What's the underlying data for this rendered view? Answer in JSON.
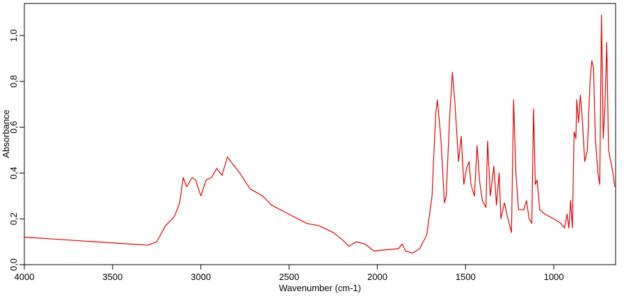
{
  "chart_data": {
    "type": "line",
    "xlabel": "Wavenumber (cm-1)",
    "ylabel": "Absorbance",
    "color": "#e00000",
    "xlim": [
      4000,
      650
    ],
    "ylim": [
      0,
      1.14
    ],
    "xticks": [
      4000,
      3500,
      3000,
      2500,
      2000,
      1500,
      1000
    ],
    "yticks": [
      {
        "value": 0,
        "label": "0,0"
      },
      {
        "value": 0.2,
        "label": "0,2"
      },
      {
        "value": 0.4,
        "label": "0,4"
      },
      {
        "value": 0.6,
        "label": "0,6"
      },
      {
        "value": 0.8,
        "label": "0,8"
      },
      {
        "value": 1.0,
        "label": "1,0"
      }
    ],
    "x": [
      4000,
      3800,
      3600,
      3400,
      3300,
      3250,
      3200,
      3150,
      3120,
      3100,
      3080,
      3050,
      3030,
      3000,
      2970,
      2940,
      2910,
      2880,
      2850,
      2820,
      2780,
      2720,
      2650,
      2600,
      2500,
      2400,
      2330,
      2250,
      2200,
      2160,
      2120,
      2070,
      2020,
      1950,
      1880,
      1860,
      1840,
      1800,
      1760,
      1720,
      1690,
      1670,
      1660,
      1640,
      1620,
      1610,
      1590,
      1575,
      1560,
      1540,
      1525,
      1510,
      1495,
      1480,
      1470,
      1450,
      1435,
      1420,
      1405,
      1385,
      1375,
      1360,
      1340,
      1325,
      1310,
      1300,
      1280,
      1260,
      1240,
      1228,
      1215,
      1200,
      1170,
      1155,
      1140,
      1125,
      1115,
      1105,
      1095,
      1080,
      1050,
      1000,
      960,
      940,
      925,
      915,
      905,
      895,
      885,
      875,
      870,
      860,
      850,
      840,
      825,
      810,
      795,
      785,
      775,
      765,
      750,
      740,
      730,
      720,
      710,
      700,
      690,
      680,
      665,
      655
    ],
    "values": [
      0.12,
      0.11,
      0.1,
      0.09,
      0.085,
      0.1,
      0.17,
      0.21,
      0.27,
      0.38,
      0.34,
      0.38,
      0.37,
      0.3,
      0.37,
      0.38,
      0.42,
      0.39,
      0.47,
      0.44,
      0.4,
      0.33,
      0.3,
      0.26,
      0.22,
      0.18,
      0.17,
      0.14,
      0.11,
      0.08,
      0.1,
      0.09,
      0.06,
      0.065,
      0.07,
      0.09,
      0.06,
      0.05,
      0.07,
      0.13,
      0.3,
      0.65,
      0.72,
      0.55,
      0.27,
      0.3,
      0.65,
      0.84,
      0.7,
      0.45,
      0.56,
      0.35,
      0.42,
      0.45,
      0.35,
      0.3,
      0.52,
      0.36,
      0.28,
      0.25,
      0.54,
      0.3,
      0.43,
      0.26,
      0.4,
      0.2,
      0.27,
      0.2,
      0.14,
      0.72,
      0.4,
      0.24,
      0.24,
      0.28,
      0.2,
      0.18,
      0.68,
      0.35,
      0.37,
      0.24,
      0.22,
      0.2,
      0.18,
      0.16,
      0.22,
      0.16,
      0.28,
      0.16,
      0.58,
      0.55,
      0.72,
      0.62,
      0.74,
      0.65,
      0.45,
      0.5,
      0.8,
      0.89,
      0.86,
      0.55,
      0.4,
      0.35,
      1.09,
      0.55,
      0.7,
      0.97,
      0.5,
      0.46,
      0.4,
      0.34
    ]
  }
}
